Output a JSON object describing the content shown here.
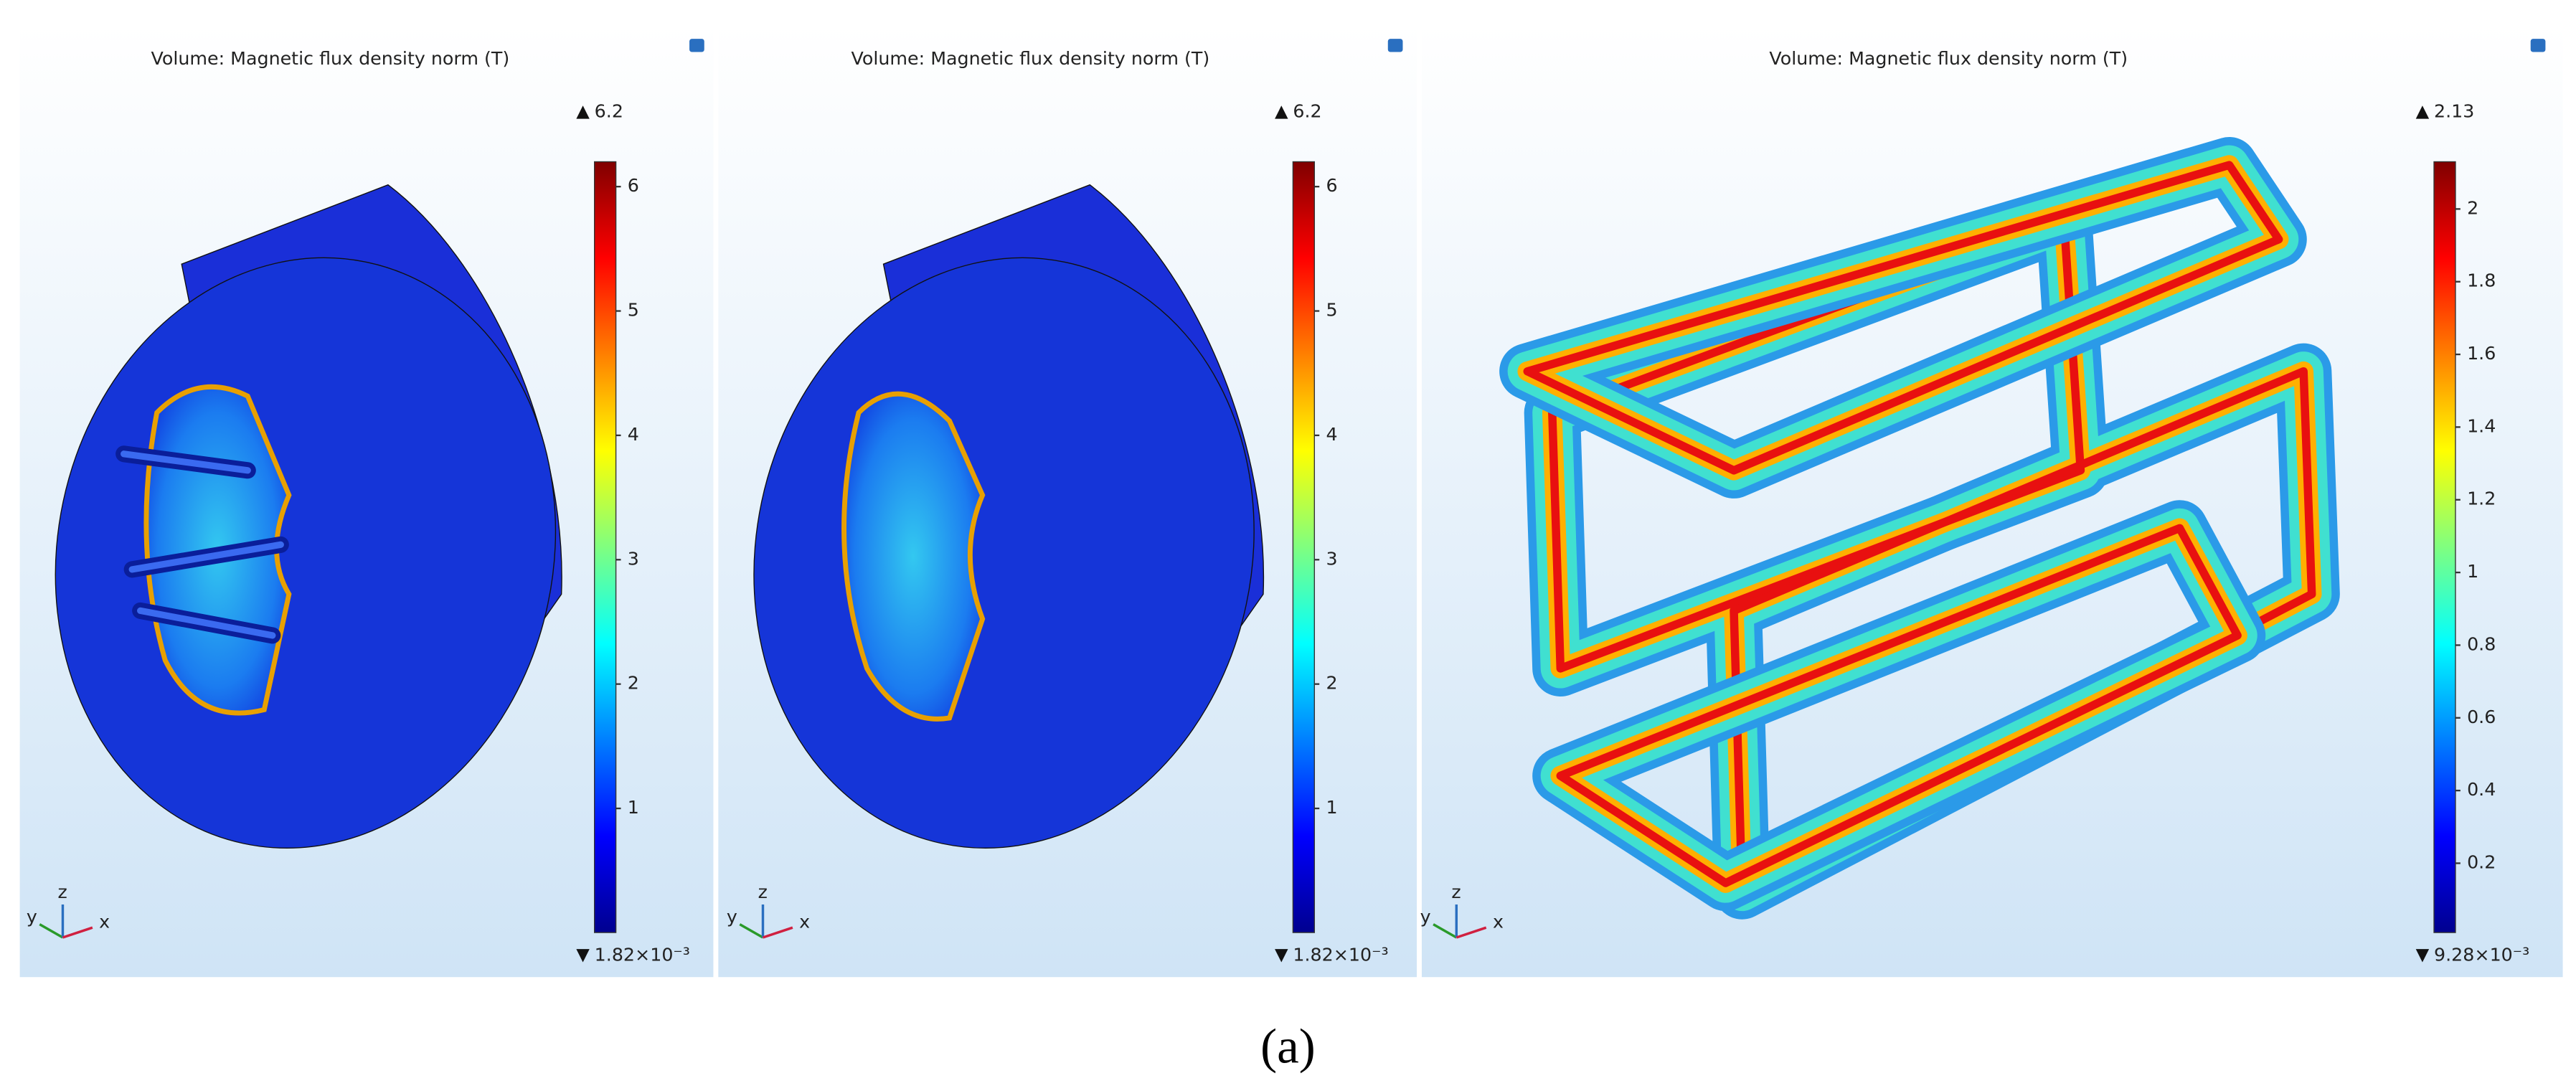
{
  "panels": [
    {
      "title": "Volume: Magnetic flux density norm (T)",
      "colorbar": {
        "max": 6.2,
        "min": {
          "value": 0.00182,
          "label": "1.82×10⁻³"
        },
        "ticks": [
          1,
          2,
          3,
          4,
          5,
          6
        ]
      }
    },
    {
      "title": "Volume: Magnetic flux density norm (T)",
      "colorbar": {
        "max": 6.2,
        "min": {
          "value": 0.00182,
          "label": "1.82×10⁻³"
        },
        "ticks": [
          1,
          2,
          3,
          4,
          5,
          6
        ]
      }
    },
    {
      "title": "Volume: Magnetic flux density norm (T)",
      "colorbar": {
        "max": 2.13,
        "min": {
          "value": 0.00928,
          "label": "9.28×10⁻³"
        },
        "ticks": [
          0.2,
          0.4,
          0.6,
          0.8,
          1,
          1.2,
          1.4,
          1.6,
          1.8,
          2
        ]
      }
    }
  ],
  "axes_labels": [
    "y",
    "z",
    "x"
  ],
  "caption": "(a)"
}
